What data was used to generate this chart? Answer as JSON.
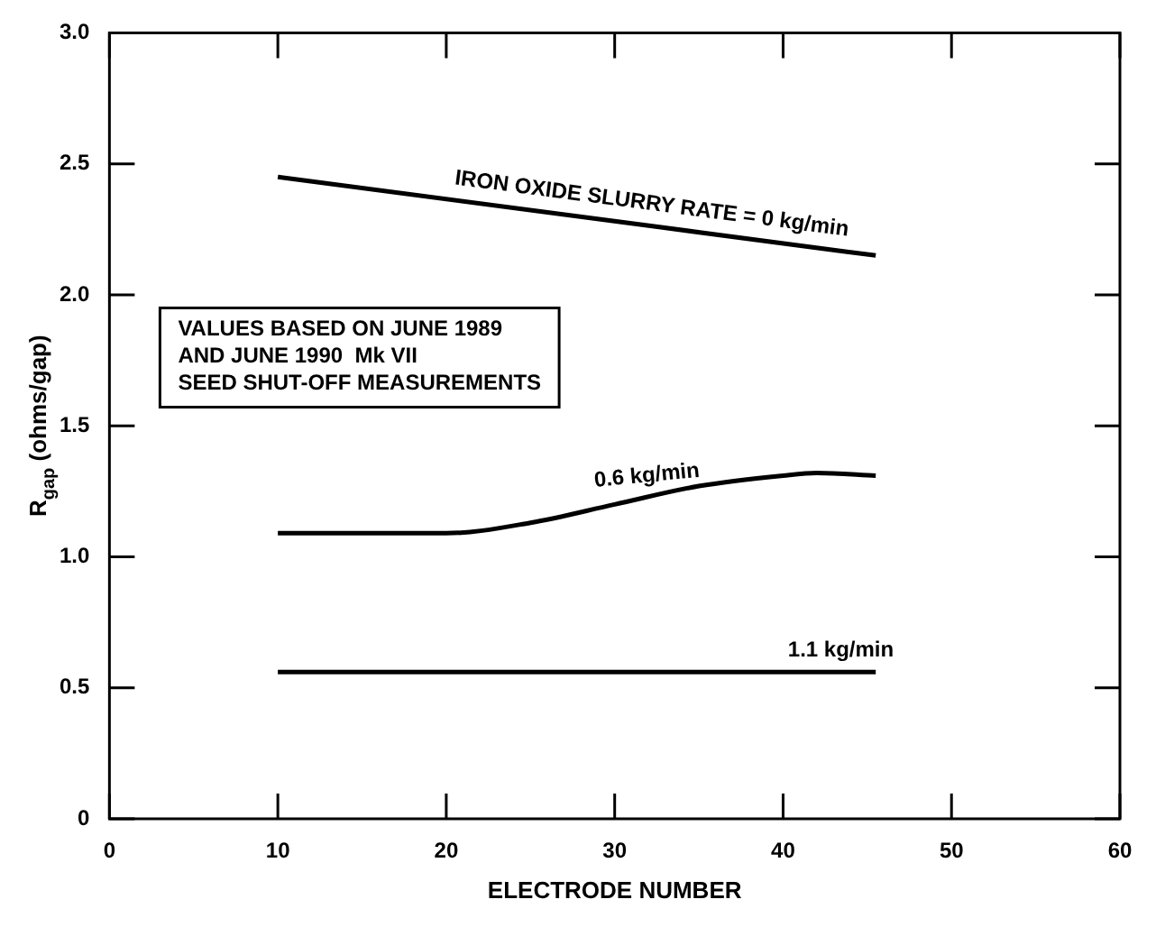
{
  "chart_data": {
    "type": "line",
    "xlabel": "ELECTRODE NUMBER",
    "ylabel": "R$_{gap}$ (ohms/gap)",
    "xlim": [
      0,
      60
    ],
    "xticks": [
      0,
      10,
      20,
      30,
      40,
      50,
      60
    ],
    "ylim": [
      0,
      3.0
    ],
    "yticks": [
      {
        "value": 0,
        "label": "0"
      },
      {
        "value": 0.5,
        "label": "0.5"
      },
      {
        "value": 1,
        "label": "1.0"
      },
      {
        "value": 1.5,
        "label": "1.5"
      },
      {
        "value": 2,
        "label": "2.0"
      },
      {
        "value": 2.5,
        "label": "2.5"
      },
      {
        "value": 3,
        "label": "3.0"
      }
    ],
    "marker": "none",
    "line_style": "solid",
    "series": [
      {
        "name": "IRON OXIDE SLURRY RATE = 0 kg/min",
        "color": "#000000",
        "x": [
          10,
          45.5
        ],
        "values": [
          2.45,
          2.15
        ]
      },
      {
        "name": "0.6 kg/min",
        "color": "#000000",
        "x": [
          10,
          15,
          20,
          25,
          30,
          35,
          40,
          42,
          45.5
        ],
        "values": [
          1.09,
          1.09,
          1.09,
          1.13,
          1.2,
          1.27,
          1.31,
          1.32,
          1.31
        ]
      },
      {
        "name": "1.1 kg/min",
        "color": "#000000",
        "x": [
          10,
          45.5
        ],
        "values": [
          0.56,
          0.56
        ]
      }
    ],
    "annotations": [
      "VALUES BASED ON JUNE 1989\nAND JUNE 1990  Mk VII\nSEED SHUT-OFF MEASUREMENTS"
    ]
  }
}
